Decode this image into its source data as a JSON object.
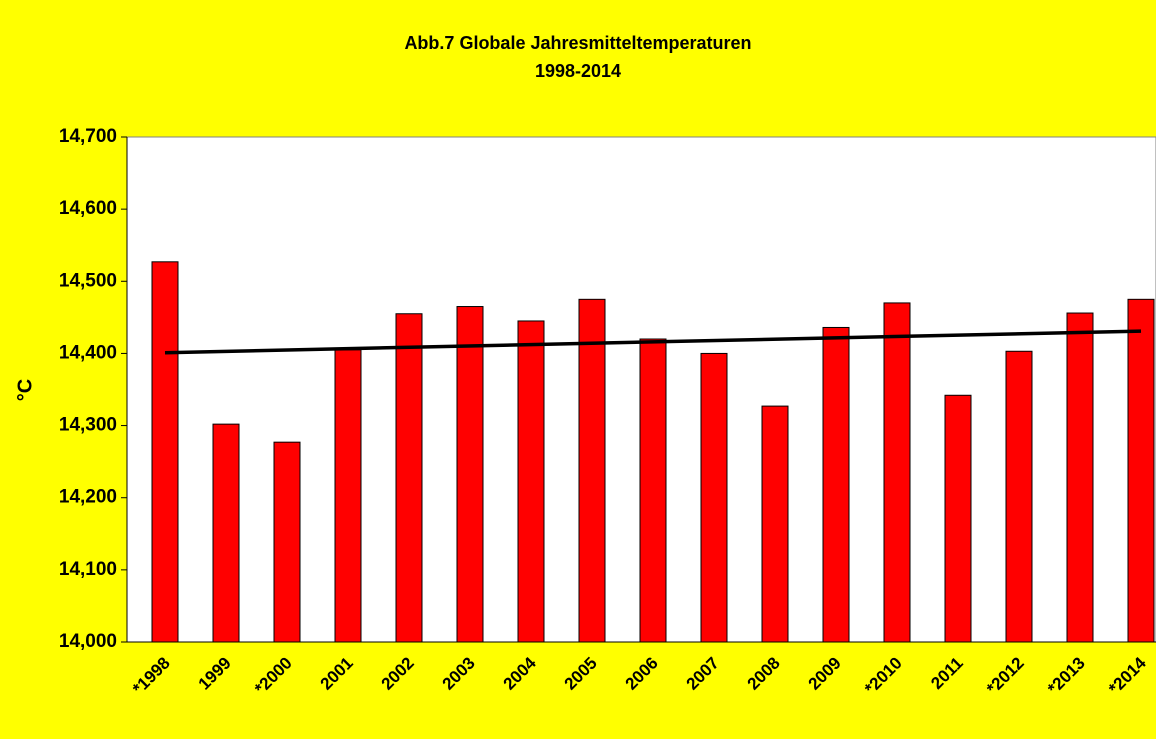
{
  "chart_data": {
    "type": "bar",
    "title": "Abb.7 Globale Jahresmitteltemperaturen",
    "subtitle": "1998-2014",
    "y_label": "°C",
    "categories": [
      "*1998",
      "1999",
      "*2000",
      "2001",
      "2002",
      "2003",
      "2004",
      "2005",
      "2006",
      "2007",
      "2008",
      "2009",
      "*2010",
      "2011",
      "*2012",
      "*2013",
      "*2014"
    ],
    "values": [
      14.527,
      14.302,
      14.277,
      14.405,
      14.455,
      14.465,
      14.445,
      14.475,
      14.42,
      14.4,
      14.327,
      14.436,
      14.47,
      14.342,
      14.403,
      14.456,
      14.475
    ],
    "color": "#ff0000",
    "trendline": {
      "color": "#000000",
      "values": [
        14.401,
        14.431
      ]
    },
    "ylim": [
      14.0,
      14.7
    ],
    "yticks": [
      {
        "value": 14.0,
        "label": "14,000"
      },
      {
        "value": 14.1,
        "label": "14,100"
      },
      {
        "value": 14.2,
        "label": "14,200"
      },
      {
        "value": 14.3,
        "label": "14,300"
      },
      {
        "value": 14.4,
        "label": "14,400"
      },
      {
        "value": 14.5,
        "label": "14,500"
      },
      {
        "value": 14.6,
        "label": "14,600"
      },
      {
        "value": 14.7,
        "label": "14,700"
      }
    ],
    "grid": false
  }
}
